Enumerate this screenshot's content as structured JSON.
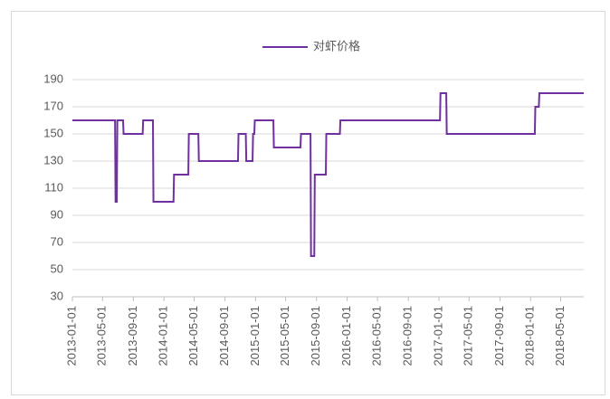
{
  "chart_data": {
    "type": "line",
    "legend": "top",
    "grid": true,
    "series": [
      {
        "name": "对虾价格",
        "color": "#7030a0",
        "x": [
          "2013-01-01",
          "2013-06-20",
          "2013-06-22",
          "2013-06-27",
          "2013-06-29",
          "2013-07-22",
          "2013-07-24",
          "2013-10-08",
          "2013-10-10",
          "2013-11-18",
          "2013-11-20",
          "2014-02-08",
          "2014-02-10",
          "2014-04-08",
          "2014-04-10",
          "2014-05-18",
          "2014-05-20",
          "2014-10-23",
          "2014-10-25",
          "2014-11-23",
          "2014-11-25",
          "2014-12-20",
          "2014-12-22",
          "2014-12-27",
          "2014-12-29",
          "2015-03-13",
          "2015-03-15",
          "2015-06-29",
          "2015-07-01",
          "2015-08-08",
          "2015-08-10",
          "2015-08-23",
          "2015-08-25",
          "2015-10-08",
          "2015-10-10",
          "2015-12-03",
          "2015-12-05",
          "2017-01-05",
          "2017-01-07",
          "2017-01-30",
          "2017-02-01",
          "2018-01-18",
          "2018-01-20",
          "2018-02-03",
          "2018-02-05",
          "2018-08-01"
        ],
        "values": [
          160,
          160,
          100,
          100,
          160,
          160,
          150,
          150,
          160,
          160,
          100,
          100,
          120,
          120,
          150,
          150,
          130,
          130,
          150,
          150,
          130,
          130,
          150,
          150,
          160,
          160,
          140,
          140,
          150,
          150,
          60,
          60,
          120,
          120,
          150,
          150,
          160,
          160,
          180,
          180,
          150,
          150,
          170,
          170,
          180,
          180
        ]
      }
    ],
    "xlim": [
      "2013-01-01",
      "2018-08-01"
    ],
    "xticks": [
      "2013-01-01",
      "2013-05-01",
      "2013-09-01",
      "2014-01-01",
      "2014-05-01",
      "2014-09-01",
      "2015-01-01",
      "2015-05-01",
      "2015-09-01",
      "2016-01-01",
      "2016-05-01",
      "2016-09-01",
      "2017-01-01",
      "2017-05-01",
      "2017-09-01",
      "2018-01-01",
      "2018-05-01"
    ],
    "ylim": [
      30,
      190
    ],
    "yticks": [
      30,
      50,
      70,
      90,
      110,
      130,
      150,
      170,
      190
    ]
  }
}
